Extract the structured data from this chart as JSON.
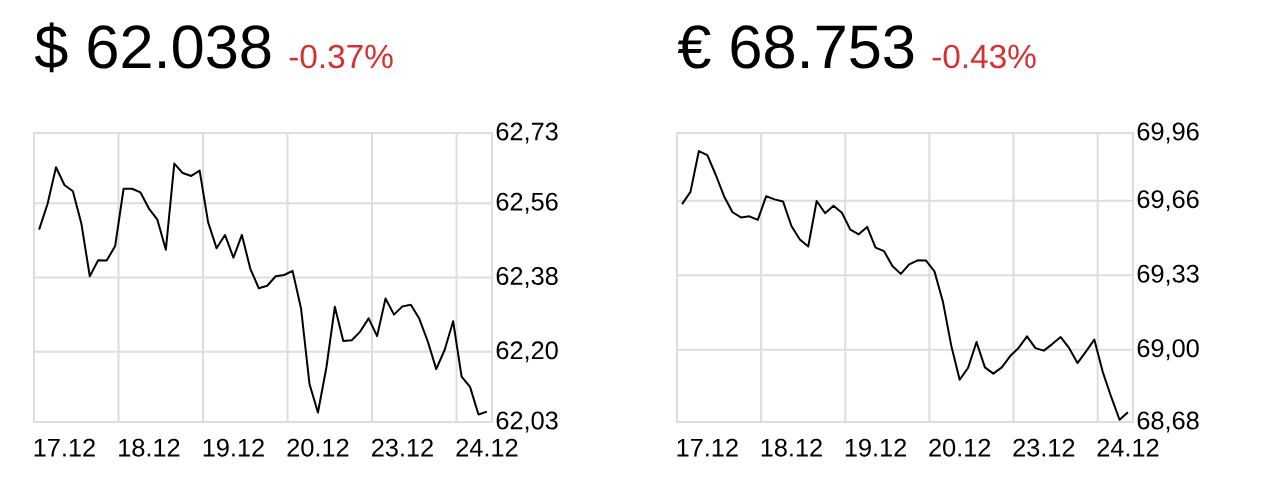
{
  "chart_data": [
    {
      "type": "line",
      "title": "$ 62.038",
      "subtitle": "-0.37%",
      "categories": [
        null,
        null,
        null,
        "17.12",
        null,
        null,
        null,
        null,
        null,
        null,
        null,
        null,
        null,
        "18.12",
        null,
        null,
        null,
        null,
        null,
        null,
        null,
        null,
        null,
        "19.12",
        null,
        null,
        null,
        null,
        null,
        null,
        null,
        null,
        null,
        "20.12",
        null,
        null,
        null,
        null,
        null,
        null,
        null,
        null,
        null,
        "23.12",
        null,
        null,
        null,
        null,
        null,
        null,
        null,
        null,
        null,
        "24.12"
      ],
      "series": [
        {
          "color": "#000000",
          "values": [
            62.496,
            62.558,
            62.647,
            62.604,
            62.589,
            62.511,
            62.383,
            62.422,
            62.421,
            62.456,
            62.595,
            62.595,
            62.586,
            62.547,
            62.52,
            62.447,
            62.656,
            62.633,
            62.626,
            62.639,
            62.514,
            62.451,
            62.483,
            62.428,
            62.483,
            62.401,
            62.354,
            62.36,
            62.383,
            62.386,
            62.396,
            62.305,
            62.122,
            62.053,
            62.162,
            62.309,
            62.226,
            62.228,
            62.249,
            62.281,
            62.238,
            62.329,
            62.29,
            62.31,
            62.314,
            62.28,
            62.225,
            62.158,
            62.205,
            62.274,
            62.14,
            62.115,
            62.048,
            62.055
          ]
        }
      ],
      "ylim": [
        62.03,
        62.73
      ],
      "yticks": [
        {
          "value": 62.03,
          "label": "62,03"
        },
        {
          "value": 62.2,
          "label": "62,20"
        },
        {
          "value": 62.38,
          "label": "62,38"
        },
        {
          "value": 62.56,
          "label": "62,56"
        },
        {
          "value": 62.73,
          "label": "62,73"
        }
      ],
      "grid": true
    },
    {
      "type": "line",
      "title": "€ 68.753",
      "subtitle": "-0.43%",
      "categories": [
        null,
        null,
        null,
        "17.12",
        null,
        null,
        null,
        null,
        null,
        null,
        null,
        null,
        null,
        "18.12",
        null,
        null,
        null,
        null,
        null,
        null,
        null,
        null,
        null,
        "19.12",
        null,
        null,
        null,
        null,
        null,
        null,
        null,
        null,
        null,
        "20.12",
        null,
        null,
        null,
        null,
        null,
        null,
        null,
        null,
        null,
        "23.12",
        null,
        null,
        null,
        null,
        null,
        null,
        null,
        null,
        null,
        "24.12"
      ],
      "series": [
        {
          "color": "#000000",
          "values": [
            69.645,
            69.699,
            69.88,
            69.862,
            69.775,
            69.679,
            69.609,
            69.586,
            69.591,
            69.575,
            69.68,
            69.666,
            69.657,
            69.548,
            69.488,
            69.457,
            69.659,
            69.605,
            69.638,
            69.607,
            69.532,
            69.511,
            69.544,
            69.452,
            69.437,
            69.371,
            69.336,
            69.378,
            69.396,
            69.395,
            69.347,
            69.214,
            69.018,
            68.867,
            68.92,
            69.034,
            68.922,
            68.894,
            68.922,
            68.972,
            69.008,
            69.059,
            69.007,
            68.996,
            69.025,
            69.056,
            69.008,
            68.941,
            68.992,
            69.045,
            68.902,
            68.792,
            68.69,
            68.723
          ]
        }
      ],
      "ylim": [
        68.68,
        69.96
      ],
      "yticks": [
        {
          "value": 68.68,
          "label": "68,68"
        },
        {
          "value": 69.0,
          "label": "69,00"
        },
        {
          "value": 69.33,
          "label": "69,33"
        },
        {
          "value": 69.66,
          "label": "69,66"
        },
        {
          "value": 69.96,
          "label": "69,96"
        }
      ],
      "grid": true
    }
  ]
}
